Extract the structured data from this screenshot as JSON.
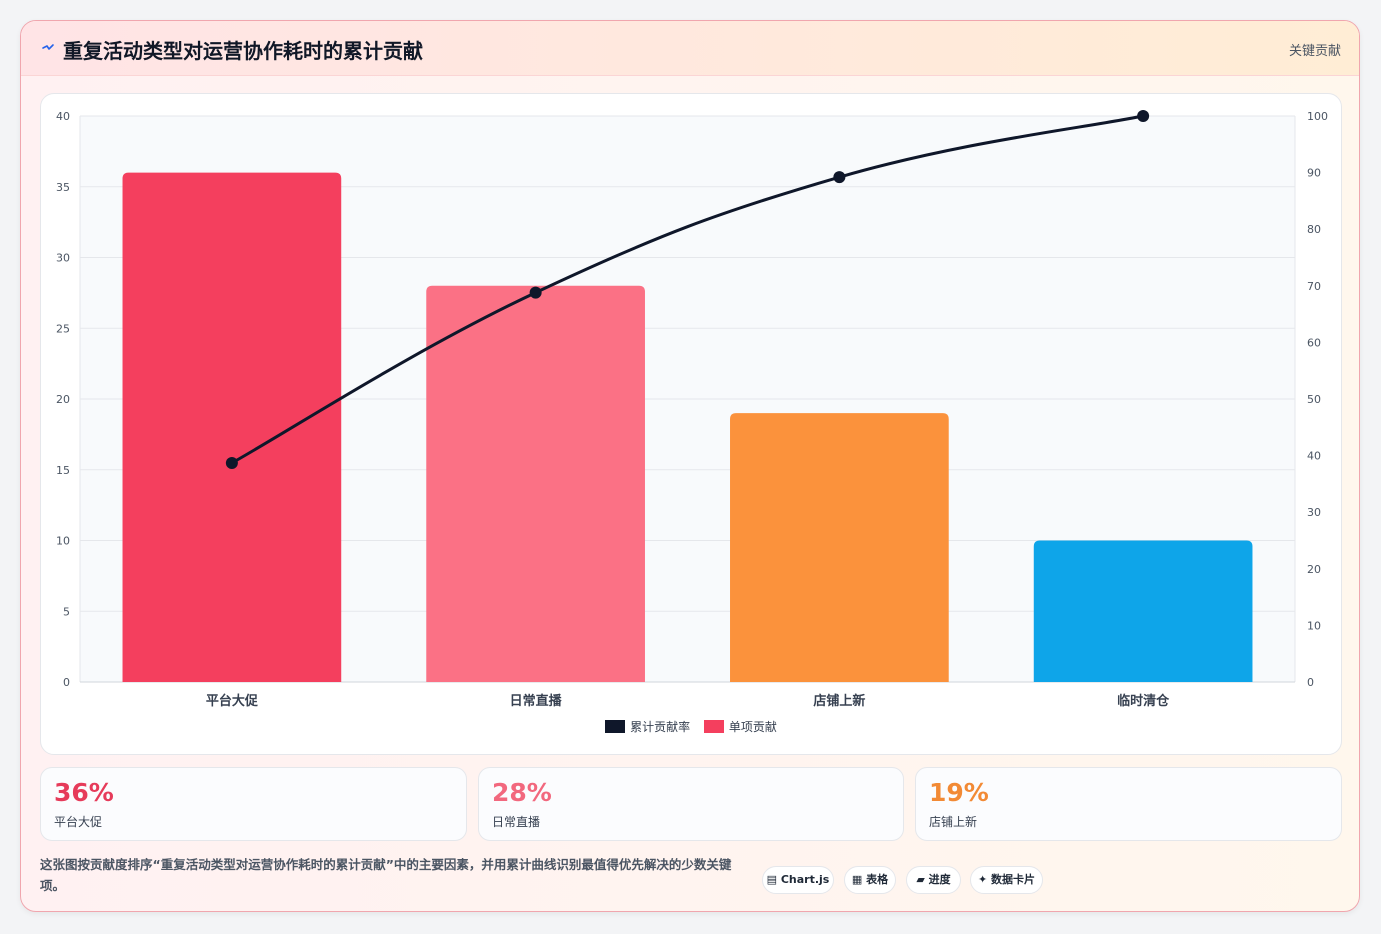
{
  "header": {
    "icon": "zigzag-icon",
    "title": "重复活动类型对运营协作耗时的累计贡献",
    "tag": "关键贡献"
  },
  "colors": {
    "line": "#0f172a",
    "bar_colors": [
      "#f43f5e",
      "#fb7185",
      "#fb923c",
      "#0ea5e9"
    ],
    "kpi_colors": [
      "#e63b5a",
      "#f2687e",
      "#f28a35"
    ]
  },
  "chart_data": {
    "type": "bar",
    "categories": [
      "平台大促",
      "日常直播",
      "店铺上新",
      "临时清仓"
    ],
    "series": [
      {
        "name": "单项贡献",
        "type": "bar",
        "axis": "left",
        "values": [
          36,
          28,
          19,
          10
        ]
      },
      {
        "name": "累计贡献率",
        "type": "line",
        "axis": "right",
        "values": [
          38.7,
          68.8,
          89.2,
          100
        ]
      }
    ],
    "left_axis": {
      "min": 0,
      "max": 40,
      "ticks": [
        0,
        5,
        10,
        15,
        20,
        25,
        30,
        35,
        40
      ]
    },
    "right_axis": {
      "min": 0,
      "max": 100,
      "ticks": [
        0,
        10,
        20,
        30,
        40,
        50,
        60,
        70,
        80,
        90,
        100
      ]
    },
    "grid": true,
    "legend_position": "bottom",
    "title": "",
    "xlabel": "",
    "ylabel": ""
  },
  "legend": [
    {
      "label": "累计贡献率",
      "color": "#0f172a"
    },
    {
      "label": "单项贡献",
      "color": "#f43f5e"
    }
  ],
  "kpis": [
    {
      "value": "36%",
      "label": "平台大促"
    },
    {
      "value": "28%",
      "label": "日常直播"
    },
    {
      "value": "19%",
      "label": "店铺上新"
    }
  ],
  "footnote": "这张图按贡献度排序“重复活动类型对运营协作耗时的累计贡献”中的主要因素，并用累计曲线识别最值得优先解决的少数关键项。",
  "chips": [
    {
      "icon": "chart-icon",
      "label": "▤ Chart.js"
    },
    {
      "icon": "table-icon",
      "label": "▦ 表格"
    },
    {
      "icon": "progress-icon",
      "label": "▰ 进度"
    },
    {
      "icon": "sparkle-icon",
      "label": "✦ 数据卡片"
    }
  ]
}
